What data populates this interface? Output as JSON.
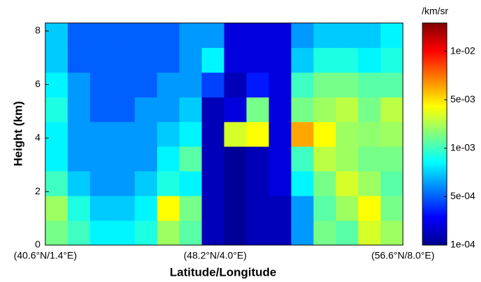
{
  "chart_data": {
    "type": "heatmap",
    "x_label": "Latitude/Longitude",
    "y_label": "Height (km)",
    "colorbar_label": "/km/sr",
    "colormap": "jet",
    "xlim": [
      40.6,
      56.6
    ],
    "xticks": [
      {
        "value": 40.6,
        "label": "(40.6°N/1.4°E)"
      },
      {
        "value": 48.2,
        "label": "(48.2°N/4.0°E)"
      },
      {
        "value": 56.6,
        "label": "(56.6°N/8.0°E)"
      }
    ],
    "ylim": [
      0,
      8.3
    ],
    "yticks": [
      0,
      2,
      4,
      6,
      8
    ],
    "clim": [
      0.0001,
      0.015
    ],
    "cticks": [
      {
        "value": 0.0001,
        "label": "1e-04"
      },
      {
        "value": 0.0005,
        "label": "5e-04"
      },
      {
        "value": 0.001,
        "label": "1e-03"
      },
      {
        "value": 0.005,
        "label": "5e-03"
      },
      {
        "value": 0.01,
        "label": "1e-02"
      }
    ],
    "x": [
      41.1,
      42.1,
      43.1,
      44.1,
      45.1,
      46.1,
      47.1,
      48.1,
      49.1,
      50.1,
      51.1,
      52.1,
      53.1,
      54.1,
      55.1,
      56.1
    ],
    "y": [
      0.46,
      1.38,
      2.31,
      3.23,
      4.15,
      5.07,
      5.99,
      6.92,
      7.84
    ],
    "values": [
      [
        0.0015,
        0.001,
        0.0008,
        0.0008,
        0.0009,
        0.002,
        0.0012,
        0.00015,
        0.00012,
        0.00015,
        0.00015,
        0.0006,
        0.0015,
        0.0012,
        0.003,
        0.002
      ],
      [
        0.002,
        0.0009,
        0.0007,
        0.0007,
        0.0008,
        0.004,
        0.0015,
        0.00015,
        0.00012,
        0.00015,
        0.00015,
        0.0006,
        0.0012,
        0.002,
        0.004,
        0.0015
      ],
      [
        0.001,
        0.0007,
        0.0006,
        0.0006,
        0.0007,
        0.0009,
        0.0008,
        0.00015,
        0.00012,
        0.00015,
        0.0002,
        0.0008,
        0.0015,
        0.003,
        0.002,
        0.0012
      ],
      [
        0.0008,
        0.0006,
        0.0006,
        0.0006,
        0.0006,
        0.0008,
        0.0012,
        0.00015,
        0.00012,
        0.00015,
        0.0002,
        0.001,
        0.0025,
        0.002,
        0.0015,
        0.0015
      ],
      [
        0.0008,
        0.0006,
        0.0006,
        0.0006,
        0.0006,
        0.0007,
        0.0008,
        0.00015,
        0.003,
        0.004,
        0.0002,
        0.006,
        0.004,
        0.002,
        0.0018,
        0.002
      ],
      [
        0.0009,
        0.0006,
        0.0005,
        0.0005,
        0.0006,
        0.0006,
        0.0007,
        0.00015,
        0.0002,
        0.0015,
        0.0002,
        0.0015,
        0.002,
        0.0025,
        0.0015,
        0.0025
      ],
      [
        0.0008,
        0.0006,
        0.0005,
        0.0005,
        0.0005,
        0.0006,
        0.0006,
        0.0004,
        0.00015,
        0.0003,
        0.0002,
        0.001,
        0.0015,
        0.0015,
        0.0012,
        0.0012
      ],
      [
        0.0007,
        0.0005,
        0.0005,
        0.0005,
        0.0005,
        0.0005,
        0.0006,
        0.0008,
        0.0002,
        0.0002,
        0.0002,
        0.0007,
        0.0009,
        0.0009,
        0.0008,
        0.0009
      ],
      [
        0.0007,
        0.0005,
        0.0005,
        0.0005,
        0.0005,
        0.0005,
        0.0006,
        0.0006,
        0.0002,
        0.0002,
        0.0002,
        0.0006,
        0.0007,
        0.0007,
        0.0007,
        0.0008
      ]
    ]
  }
}
